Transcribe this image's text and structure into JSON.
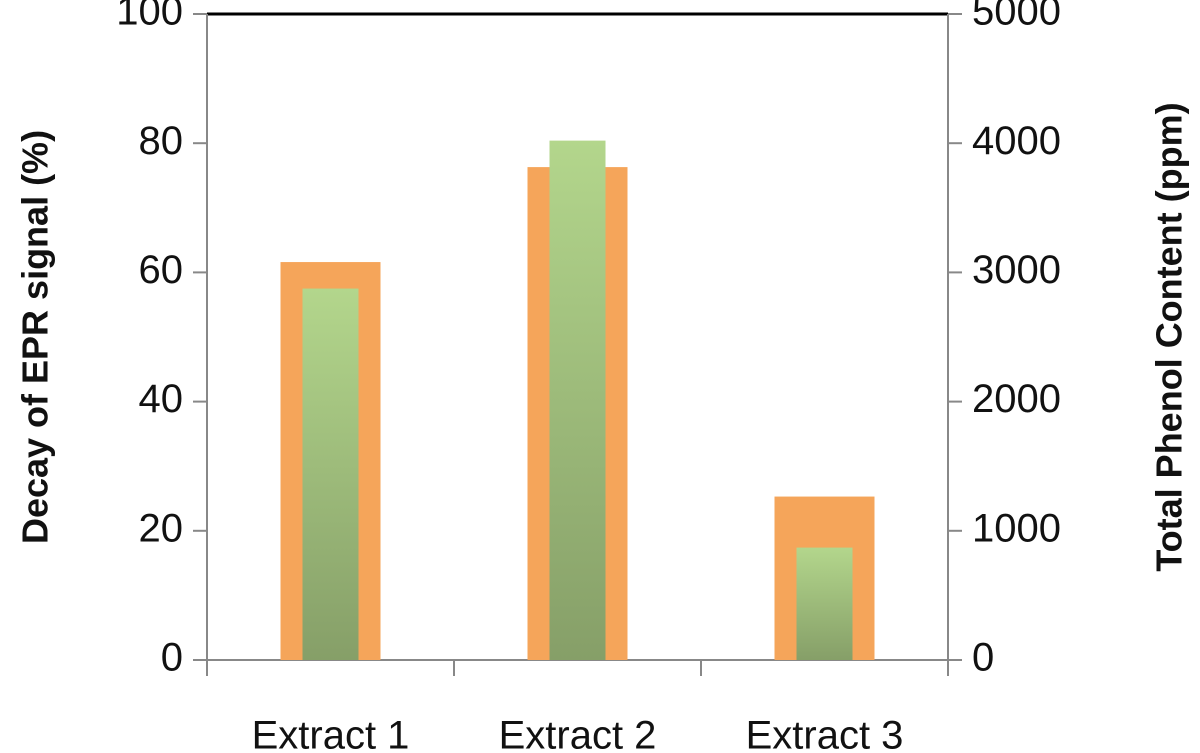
{
  "chart_data": {
    "type": "bar",
    "y_label": "Decay of EPR signal (%)",
    "y2_label": "Total Phenol Content (ppm)",
    "categories": [
      "Extract 1",
      "Extract 2",
      "Extract 3"
    ],
    "series": [
      {
        "color": "#f5a55a",
        "values": [
          61.6,
          76.3,
          25.3
        ]
      },
      {
        "color": "#9fbf7a",
        "values": [
          2875,
          4020,
          870
        ],
        "axis": "y2"
      }
    ],
    "ylim": [
      0,
      100
    ],
    "yticks": [
      0,
      20,
      40,
      60,
      80,
      100
    ],
    "y2lim": [
      0,
      5000
    ],
    "y2ticks": [
      0,
      1000,
      2000,
      3000,
      4000,
      5000
    ]
  }
}
